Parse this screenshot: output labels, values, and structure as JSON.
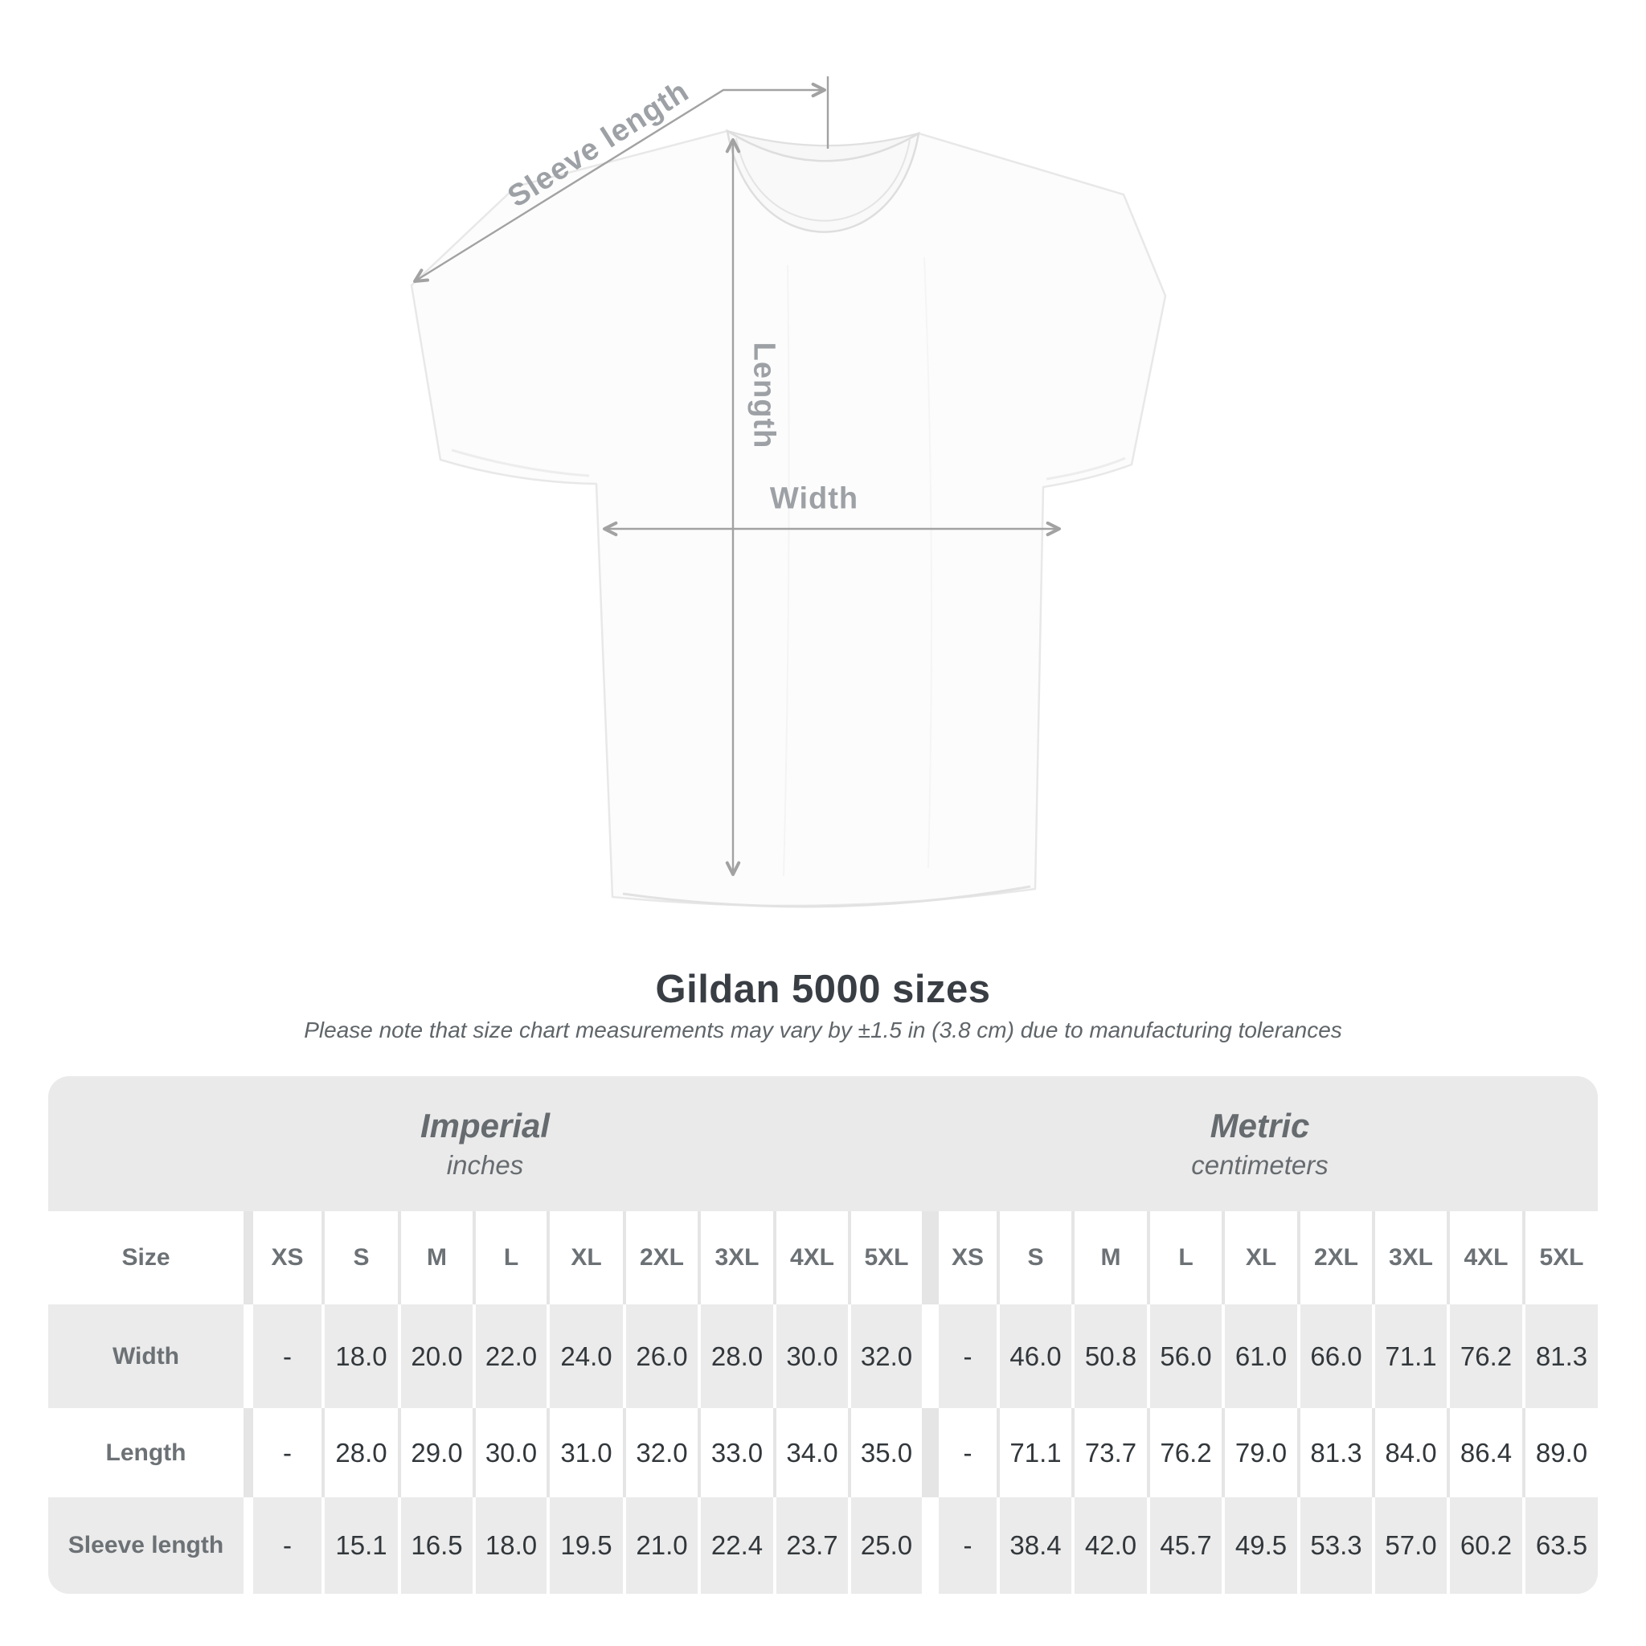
{
  "diagram": {
    "sleeve_length_label": "Sleeve length",
    "length_label": "Length",
    "width_label": "Width",
    "line_color": "#a2a2a2",
    "label_color": "#9da1a5"
  },
  "title": "Gildan 5000 sizes",
  "subtitle": "Please note that size chart measurements may vary by ±1.5 in (3.8 cm) due to manufacturing tolerances",
  "table": {
    "size_label": "Size",
    "sections": [
      {
        "name": "Imperial",
        "unit": "inches"
      },
      {
        "name": "Metric",
        "unit": "centimeters"
      }
    ],
    "sizes": [
      "XS",
      "S",
      "M",
      "L",
      "XL",
      "2XL",
      "3XL",
      "4XL",
      "5XL"
    ],
    "rows": [
      {
        "label": "Width",
        "imperial": [
          "-",
          "18.0",
          "20.0",
          "22.0",
          "24.0",
          "26.0",
          "28.0",
          "30.0",
          "32.0"
        ],
        "metric": [
          "-",
          "46.0",
          "50.8",
          "56.0",
          "61.0",
          "66.0",
          "71.1",
          "76.2",
          "81.3"
        ]
      },
      {
        "label": "Length",
        "imperial": [
          "-",
          "28.0",
          "29.0",
          "30.0",
          "31.0",
          "32.0",
          "33.0",
          "34.0",
          "35.0"
        ],
        "metric": [
          "-",
          "71.1",
          "73.7",
          "76.2",
          "79.0",
          "81.3",
          "84.0",
          "86.4",
          "89.0"
        ]
      },
      {
        "label": "Sleeve length",
        "imperial": [
          "-",
          "15.1",
          "16.5",
          "18.0",
          "19.5",
          "21.0",
          "22.4",
          "23.7",
          "25.0"
        ],
        "metric": [
          "-",
          "38.4",
          "42.0",
          "45.7",
          "49.5",
          "53.3",
          "57.0",
          "60.2",
          "63.5"
        ]
      }
    ]
  },
  "chart_data": {
    "type": "table",
    "title": "Gildan 5000 sizes",
    "note": "Please note that size chart measurements may vary by ±1.5 in (3.8 cm) due to manufacturing tolerances",
    "sections": [
      "Imperial (inches)",
      "Metric (centimeters)"
    ],
    "columns": [
      "XS",
      "S",
      "M",
      "L",
      "XL",
      "2XL",
      "3XL",
      "4XL",
      "5XL"
    ],
    "rows": [
      {
        "measurement": "Width",
        "imperial_inches": [
          null,
          18.0,
          20.0,
          22.0,
          24.0,
          26.0,
          28.0,
          30.0,
          32.0
        ],
        "metric_centimeters": [
          null,
          46.0,
          50.8,
          56.0,
          61.0,
          66.0,
          71.1,
          76.2,
          81.3
        ]
      },
      {
        "measurement": "Length",
        "imperial_inches": [
          null,
          28.0,
          29.0,
          30.0,
          31.0,
          32.0,
          33.0,
          34.0,
          35.0
        ],
        "metric_centimeters": [
          null,
          71.1,
          73.7,
          76.2,
          79.0,
          81.3,
          84.0,
          86.4,
          89.0
        ]
      },
      {
        "measurement": "Sleeve length",
        "imperial_inches": [
          null,
          15.1,
          16.5,
          18.0,
          19.5,
          21.0,
          22.4,
          23.7,
          25.0
        ],
        "metric_centimeters": [
          null,
          38.4,
          42.0,
          45.7,
          49.5,
          53.3,
          57.0,
          60.2,
          63.5
        ]
      }
    ]
  }
}
